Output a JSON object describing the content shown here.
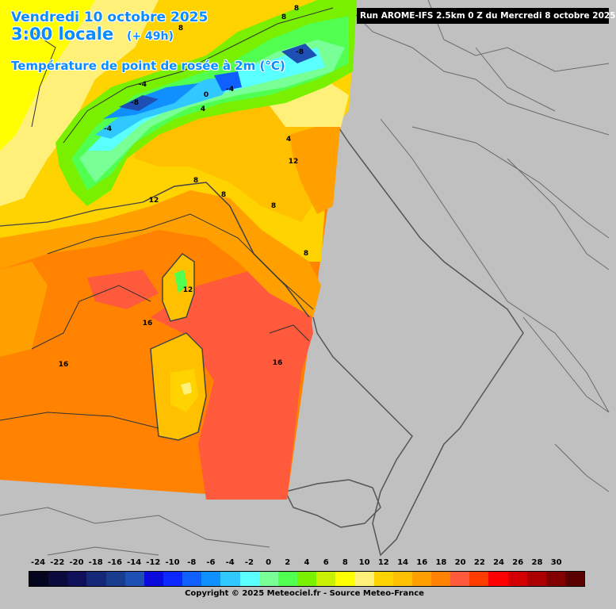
{
  "header": {
    "date": "Vendredi 10 octobre 2025",
    "time": "3:00 locale",
    "offset": "(+ 49h)",
    "parameter": "Température de point de rosée à 2m (°C)"
  },
  "run_banner": "Run AROME-IFS 2.5km 0 Z du Mercredi 8 octobre 2025",
  "contour_labels": [
    "8",
    "8",
    "8",
    "-4",
    "-8",
    "-4",
    "0",
    "-4",
    "-8",
    "4",
    "12",
    "12",
    "8",
    "8",
    "8",
    "12",
    "16",
    "16",
    "16",
    "8",
    "4"
  ],
  "legend": {
    "ticks": [
      "-24",
      "-22",
      "-20",
      "-18",
      "-16",
      "-14",
      "-12",
      "-10",
      "-8",
      "-6",
      "-4",
      "-2",
      "0",
      "2",
      "4",
      "6",
      "8",
      "10",
      "12",
      "14",
      "16",
      "18",
      "20",
      "22",
      "24",
      "26",
      "28",
      "30"
    ],
    "colors": [
      "#04041e",
      "#0a0a3c",
      "#10105a",
      "#142878",
      "#1a3c8c",
      "#1e50b4",
      "#0a0adc",
      "#0a28ff",
      "#1060ff",
      "#1090ff",
      "#30c8ff",
      "#5affff",
      "#78ff96",
      "#50ff50",
      "#78f000",
      "#c8f000",
      "#ffff00",
      "#fff07a",
      "#ffd300",
      "#ffc000",
      "#ffa000",
      "#ff8200",
      "#ff5a3c",
      "#ff3c00",
      "#ff0000",
      "#d20000",
      "#aa0000",
      "#820000",
      "#5a0000"
    ]
  },
  "copyright": "Copyright © 2025 Meteociel.fr - Source Meteo-France"
}
